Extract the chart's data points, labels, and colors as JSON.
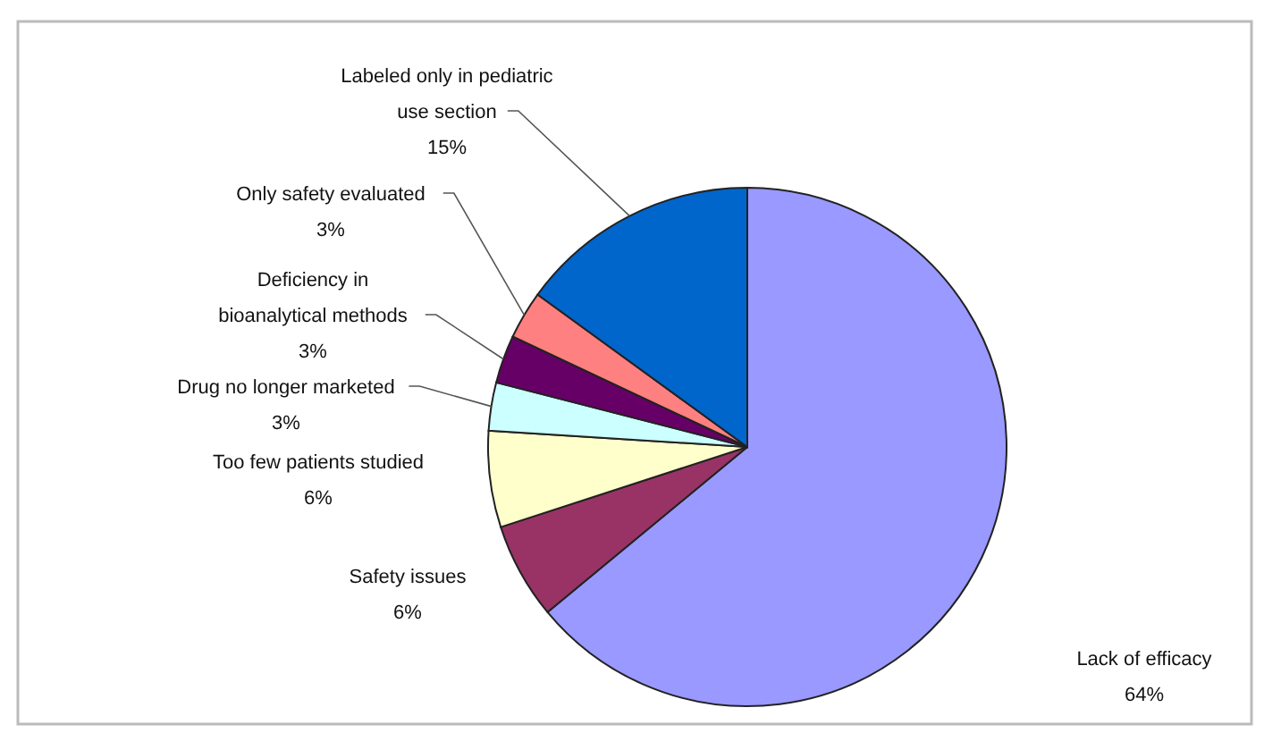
{
  "chart_data": {
    "type": "pie",
    "categories": [
      "Lack of efficacy",
      "Safety issues",
      "Too few patients studied",
      "Drug no longer marketed",
      "Deficiency in bioanalytical methods",
      "Only safety evaluated",
      "Labeled only in pediatric use section"
    ],
    "values": [
      64,
      6,
      6,
      3,
      3,
      3,
      15
    ],
    "value_labels": [
      "64%",
      "6%",
      "6%",
      "3%",
      "3%",
      "3%",
      "15%"
    ],
    "colors": [
      "#9999ff",
      "#993366",
      "#ffffcc",
      "#ccffff",
      "#660066",
      "#ff8080",
      "#0066cc"
    ]
  }
}
